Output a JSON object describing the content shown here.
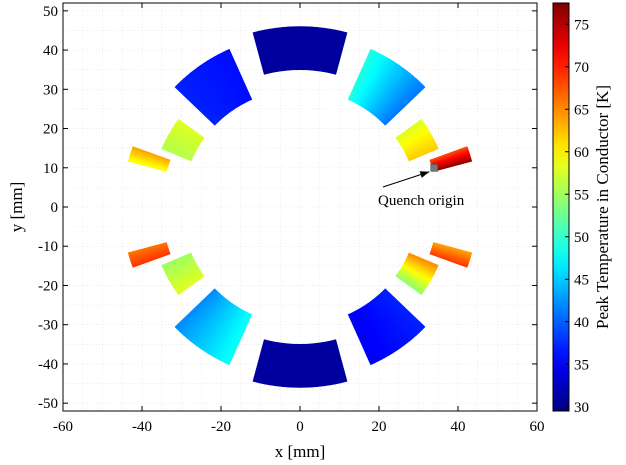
{
  "chart_data": {
    "type": "heatmap",
    "title": "",
    "xlabel": "x [mm]",
    "ylabel": "y [mm]",
    "xlim": [
      -60,
      60
    ],
    "ylim": [
      -52,
      52
    ],
    "x_ticks": [
      "-60",
      "-40",
      "-20",
      "0",
      "20",
      "40",
      "60"
    ],
    "y_ticks": [
      "-50",
      "-40",
      "-30",
      "-20",
      "-10",
      "0",
      "10",
      "20",
      "30",
      "40",
      "50"
    ],
    "grid": true,
    "colorbar": {
      "label": "Peak Temperature in Conductor [K]",
      "range": [
        29.5,
        77.5
      ],
      "ticks": [
        "30",
        "35",
        "40",
        "45",
        "50",
        "55",
        "60",
        "65",
        "70",
        "75"
      ],
      "colormap": "jet"
    },
    "blocks": [
      {
        "name": "top-center",
        "r_in": 35,
        "r_out": 46,
        "a0": 75,
        "a1": 105,
        "t_start": 31,
        "t_end": 31
      },
      {
        "name": "top-left-1",
        "r_in": 30,
        "r_out": 44,
        "a0": 114,
        "a1": 136,
        "t_start": 36,
        "t_end": 37
      },
      {
        "name": "top-right-1",
        "r_in": 30,
        "r_out": 44,
        "a0": 44,
        "a1": 66,
        "t_start": 41,
        "t_end": 49
      },
      {
        "name": "top-left-2",
        "r_in": 30,
        "r_out": 38,
        "a0": 144,
        "a1": 157,
        "t_start": 58,
        "t_end": 56
      },
      {
        "name": "top-right-2",
        "r_in": 30,
        "r_out": 38,
        "a0": 23,
        "a1": 36,
        "t_start": 62,
        "t_end": 58
      },
      {
        "name": "top-left-3",
        "r_in": 35,
        "r_out": 45,
        "a0": 160,
        "a1": 165,
        "t_start": 64,
        "t_end": 59
      },
      {
        "name": "top-right-3",
        "r_in": 35,
        "r_out": 45,
        "a0": 15,
        "a1": 20,
        "t_start": 77,
        "t_end": 68
      },
      {
        "name": "bottom-center",
        "r_in": 35,
        "r_out": 46,
        "a0": 255,
        "a1": 285,
        "t_start": 31,
        "t_end": 31
      },
      {
        "name": "bottom-left-1",
        "r_in": 30,
        "r_out": 44,
        "a0": 224,
        "a1": 246,
        "t_start": 42,
        "t_end": 48
      },
      {
        "name": "bottom-right-1",
        "r_in": 30,
        "r_out": 44,
        "a0": 294,
        "a1": 316,
        "t_start": 35,
        "t_end": 37
      },
      {
        "name": "bottom-left-2",
        "r_in": 30,
        "r_out": 38,
        "a0": 203,
        "a1": 216,
        "t_start": 55,
        "t_end": 58
      },
      {
        "name": "bottom-right-2",
        "r_in": 30,
        "r_out": 38,
        "a0": 324,
        "a1": 337,
        "t_start": 54,
        "t_end": 65
      },
      {
        "name": "bottom-left-3",
        "r_in": 35,
        "r_out": 45,
        "a0": 195,
        "a1": 200,
        "t_start": 66,
        "t_end": 69
      },
      {
        "name": "bottom-right-3",
        "r_in": 35,
        "r_out": 45,
        "a0": 340,
        "a1": 345,
        "t_start": 69,
        "t_end": 64
      }
    ],
    "annotation": {
      "text": "Quench origin",
      "point": [
        34,
        10
      ]
    }
  }
}
